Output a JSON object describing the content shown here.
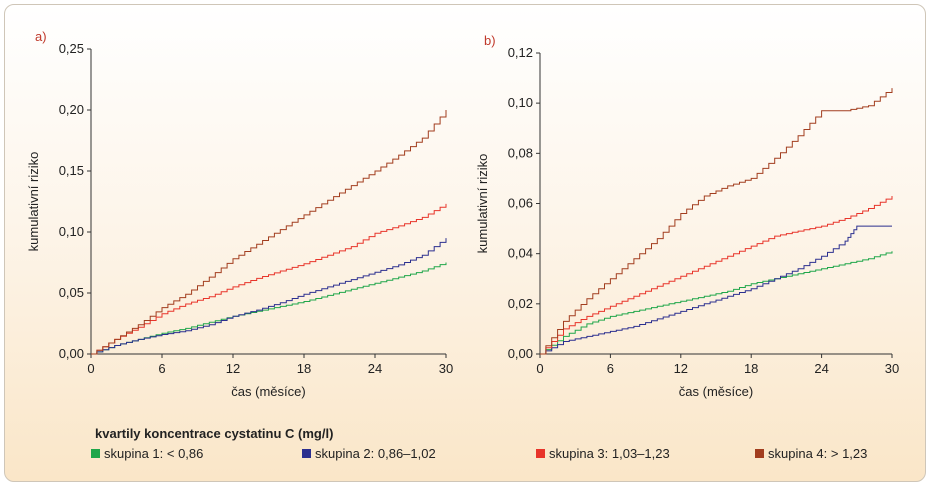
{
  "colors": {
    "skupina1": "#1fa64a",
    "skupina2": "#2b2f8f",
    "skupina3": "#e8342a",
    "skupina4": "#a23d1e",
    "panel_label": "#c0392b"
  },
  "legend": {
    "title": "kvartily koncentrace cystatinu C (mg/l)",
    "items": [
      {
        "label": "skupina 1: < 0,86"
      },
      {
        "label": "skupina 2: 0,86–1,02"
      },
      {
        "label": "skupina 3: 1,03–1,23"
      },
      {
        "label": "skupina 4: > 1,23"
      }
    ]
  },
  "chart_data": [
    {
      "type": "line",
      "panel_label": "a)",
      "xlabel": "čas (měsíce)",
      "ylabel": "kumulativní riziko",
      "xlim": [
        0,
        30
      ],
      "ylim": [
        0,
        0.25
      ],
      "xticks": [
        "0",
        "6",
        "12",
        "18",
        "24",
        "30"
      ],
      "yticks": [
        "0,00",
        "0,05",
        "0,10",
        "0,15",
        "0,20",
        "0,25"
      ],
      "series": [
        {
          "name": "skupina 1: < 0,86",
          "x": [
            0,
            2,
            4,
            6,
            8,
            10,
            12,
            14,
            16,
            18,
            20,
            22,
            24,
            26,
            28,
            30
          ],
          "y": [
            0,
            0.007,
            0.012,
            0.017,
            0.021,
            0.026,
            0.031,
            0.035,
            0.039,
            0.043,
            0.048,
            0.053,
            0.058,
            0.063,
            0.068,
            0.075
          ]
        },
        {
          "name": "skupina 2: 0,86–1,02",
          "x": [
            0,
            2,
            4,
            6,
            8,
            10,
            12,
            14,
            16,
            18,
            20,
            22,
            24,
            26,
            28,
            30
          ],
          "y": [
            0,
            0.007,
            0.012,
            0.016,
            0.019,
            0.024,
            0.031,
            0.036,
            0.042,
            0.049,
            0.055,
            0.061,
            0.067,
            0.073,
            0.081,
            0.095
          ]
        },
        {
          "name": "skupina 3: 1,03–1,23",
          "x": [
            0,
            2,
            4,
            6,
            8,
            10,
            12,
            14,
            16,
            18,
            20,
            22,
            24,
            26,
            28,
            30
          ],
          "y": [
            0,
            0.012,
            0.022,
            0.033,
            0.041,
            0.047,
            0.055,
            0.062,
            0.068,
            0.074,
            0.081,
            0.088,
            0.099,
            0.105,
            0.112,
            0.123
          ]
        },
        {
          "name": "skupina 4: > 1,23",
          "x": [
            0,
            2,
            4,
            6,
            8,
            10,
            12,
            14,
            16,
            18,
            20,
            22,
            24,
            26,
            28,
            30
          ],
          "y": [
            0,
            0.012,
            0.024,
            0.038,
            0.049,
            0.063,
            0.078,
            0.09,
            0.102,
            0.114,
            0.126,
            0.138,
            0.15,
            0.163,
            0.177,
            0.2
          ]
        }
      ]
    },
    {
      "type": "line",
      "panel_label": "b)",
      "xlabel": "čas (měsíce)",
      "ylabel": "kumulativní riziko",
      "xlim": [
        0,
        30
      ],
      "ylim": [
        0,
        0.12
      ],
      "xticks": [
        "0",
        "6",
        "12",
        "18",
        "24",
        "30"
      ],
      "yticks": [
        "0,00",
        "0,02",
        "0,04",
        "0,06",
        "0,08",
        "0,10",
        "0,12"
      ],
      "series": [
        {
          "name": "skupina 1: < 0,86",
          "x": [
            0,
            2,
            4,
            6,
            8,
            10,
            12,
            14,
            16,
            18,
            20,
            22,
            24,
            26,
            28,
            30
          ],
          "y": [
            0,
            0.007,
            0.012,
            0.015,
            0.017,
            0.019,
            0.021,
            0.023,
            0.025,
            0.028,
            0.03,
            0.032,
            0.034,
            0.036,
            0.038,
            0.041
          ]
        },
        {
          "name": "skupina 2: 0,86–1,02",
          "x": [
            0,
            2,
            4,
            6,
            8,
            10,
            12,
            14,
            16,
            18,
            20,
            22,
            24,
            26,
            27,
            30
          ],
          "y": [
            0,
            0.005,
            0.007,
            0.009,
            0.011,
            0.014,
            0.017,
            0.02,
            0.023,
            0.026,
            0.03,
            0.034,
            0.039,
            0.045,
            0.051,
            0.051
          ]
        },
        {
          "name": "skupina 3: 1,03–1,23",
          "x": [
            0,
            2,
            4,
            6,
            8,
            10,
            12,
            14,
            16,
            18,
            20,
            22,
            24,
            26,
            28,
            30
          ],
          "y": [
            0,
            0.01,
            0.015,
            0.019,
            0.023,
            0.027,
            0.031,
            0.035,
            0.039,
            0.043,
            0.047,
            0.049,
            0.051,
            0.054,
            0.058,
            0.063
          ]
        },
        {
          "name": "skupina 4: > 1,23",
          "x": [
            0,
            2,
            4,
            6,
            8,
            10,
            12,
            14,
            16,
            18,
            20,
            22,
            24,
            26,
            28,
            30
          ],
          "y": [
            0,
            0.013,
            0.022,
            0.03,
            0.038,
            0.046,
            0.056,
            0.063,
            0.067,
            0.07,
            0.078,
            0.087,
            0.097,
            0.097,
            0.099,
            0.106
          ]
        }
      ]
    }
  ]
}
